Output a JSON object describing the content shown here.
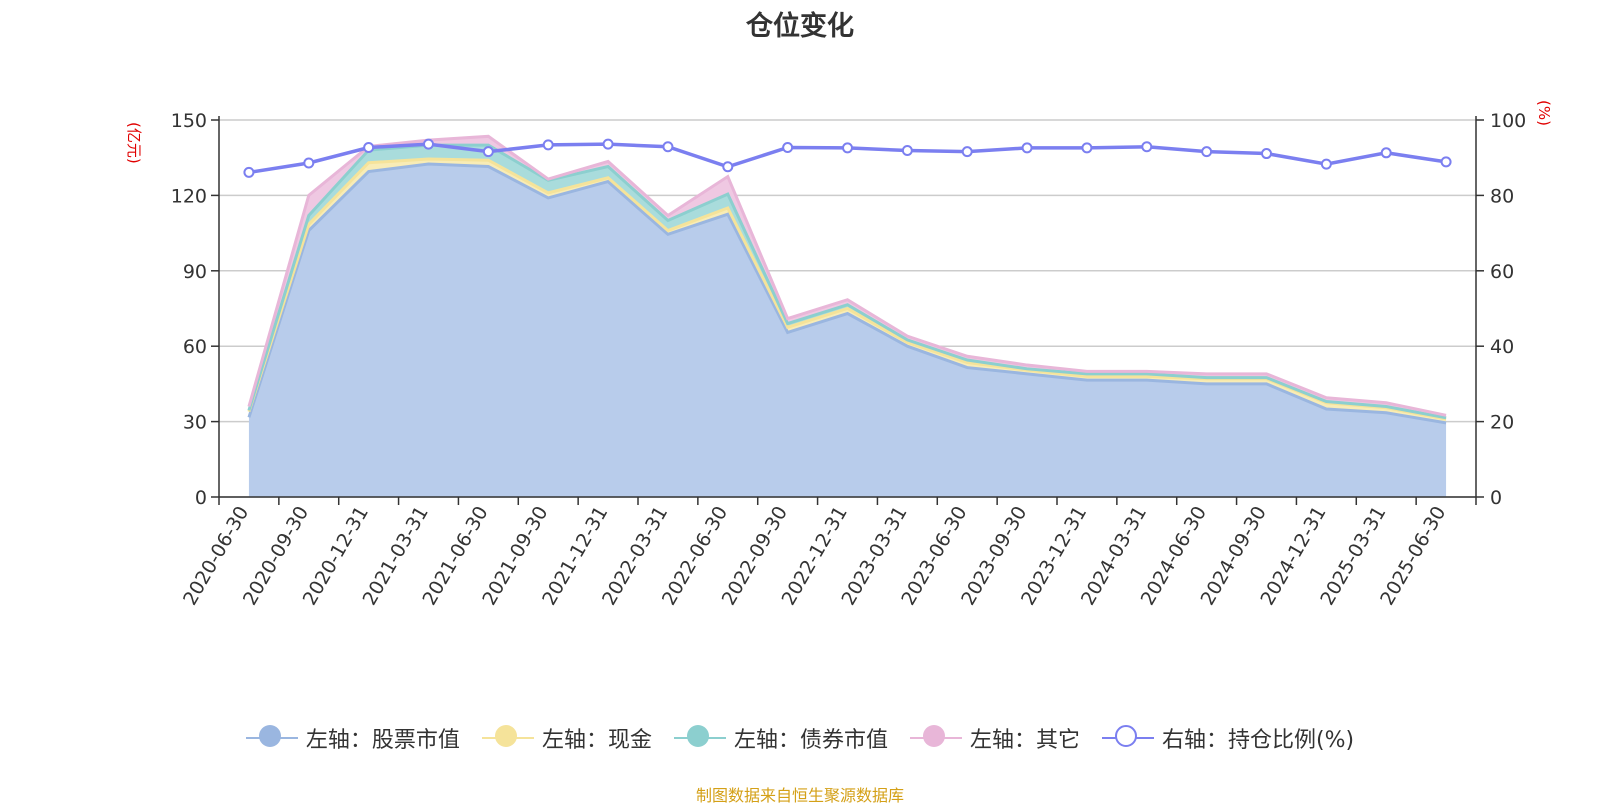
{
  "title": "仓位变化",
  "left_unit": "(亿元)",
  "right_unit": "(%)",
  "source": "制图数据来自恒生聚源数据库",
  "chart_data": {
    "type": "area",
    "title": "仓位变化",
    "categories": [
      "2020-06-30",
      "2020-09-30",
      "2020-12-31",
      "2021-03-31",
      "2021-06-30",
      "2021-09-30",
      "2021-12-31",
      "2022-03-31",
      "2022-06-30",
      "2022-09-30",
      "2022-12-31",
      "2023-03-31",
      "2023-06-30",
      "2023-09-30",
      "2023-12-31",
      "2024-03-31",
      "2024-06-30",
      "2024-09-30",
      "2024-12-31",
      "2025-03-31",
      "2025-06-30"
    ],
    "left_axis": {
      "unit": "(亿元)",
      "ylim": [
        0,
        150
      ],
      "ticks": [
        0,
        30,
        60,
        90,
        120,
        150
      ]
    },
    "right_axis": {
      "unit": "(%)",
      "ylim": [
        0,
        100
      ],
      "ticks": [
        0,
        20,
        40,
        60,
        80,
        100
      ]
    },
    "stacked": true,
    "series": [
      {
        "name": "左轴：股票市值",
        "axis": "left",
        "color": "#9ab6e0",
        "fill": "#b8cceb",
        "values": [
          31.7,
          106,
          129.5,
          132.5,
          131.5,
          119,
          125.5,
          104.5,
          112.5,
          65.5,
          73,
          60,
          51.5,
          49,
          46.5,
          46.5,
          45,
          45,
          35,
          33.5,
          29.5
        ]
      },
      {
        "name": "左轴：现金",
        "axis": "left",
        "color": "#f5e39a",
        "fill": "#f8ecb6",
        "values": [
          2.3,
          2.5,
          3.5,
          2.0,
          2.5,
          2.0,
          1.5,
          1.5,
          2.5,
          2.0,
          2.0,
          1.5,
          2.0,
          1.5,
          1.5,
          1.5,
          2.0,
          2.0,
          2.5,
          2.0,
          1.5
        ]
      },
      {
        "name": "左轴：债券市值",
        "axis": "left",
        "color": "#8ccfcf",
        "fill": "#a9dcdc",
        "values": [
          0.5,
          3.5,
          5.0,
          5.5,
          6.0,
          5.0,
          4.5,
          4.0,
          5.5,
          1.5,
          1.5,
          1.0,
          1.0,
          0.5,
          1.0,
          1.0,
          0.5,
          0.5,
          0.5,
          0.5,
          0.5
        ]
      },
      {
        "name": "左轴：其它",
        "axis": "left",
        "color": "#e8b6d8",
        "fill": "#efc8e2",
        "values": [
          1.5,
          8.0,
          1.5,
          2.0,
          3.5,
          0.5,
          2.0,
          2.0,
          7.0,
          2.0,
          2.0,
          1.5,
          1.5,
          1.5,
          1.0,
          1.0,
          1.5,
          1.5,
          1.5,
          1.5,
          1.0
        ]
      },
      {
        "name": "右轴：持仓比例(%)",
        "axis": "right",
        "color": "#7b7ff0",
        "values": [
          86.1,
          88.6,
          92.7,
          93.6,
          91.6,
          93.4,
          93.6,
          92.9,
          87.6,
          92.7,
          92.6,
          91.9,
          91.6,
          92.6,
          92.6,
          92.9,
          91.6,
          91.1,
          88.3,
          91.3,
          88.9
        ]
      }
    ],
    "grid": true,
    "legend_position": "bottom"
  }
}
